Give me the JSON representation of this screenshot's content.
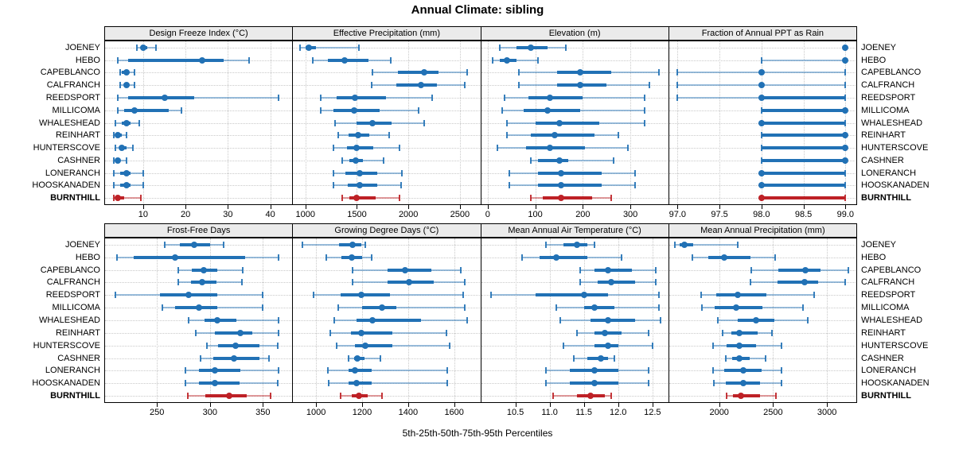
{
  "chart_data": {
    "type": "dotplot-percentile-lattice",
    "title": "Annual Climate: sibling",
    "caption": "5th-25th-50th-75th-95th Percentiles",
    "percentiles": [
      5,
      25,
      50,
      75,
      95
    ],
    "categories": [
      "JOENEY",
      "HEBO",
      "CAPEBLANCO",
      "CALFRANCH",
      "REEDSPORT",
      "MILLICOMA",
      "WHALESHEAD",
      "REINHART",
      "HUNTERSCOVE",
      "CASHNER",
      "LONERANCH",
      "HOOSKANADEN",
      "BURNTHILL"
    ],
    "highlight_category": "BURNTHILL",
    "colors": {
      "series": "#2171b5",
      "highlight": "#be2126",
      "strip_bg": "#ebebeb",
      "grid": "#c9c9c9",
      "border": "#000000"
    },
    "grid": true,
    "legend": "none",
    "panels": [
      {
        "title": "Design Freeze Index (°C)",
        "row": 0,
        "col": 0,
        "xlim": [
          1,
          45
        ],
        "ticks": [
          10,
          20,
          30,
          40
        ],
        "tick_labels": [
          "10",
          "20",
          "30",
          "40"
        ],
        "values": [
          [
            8.5,
            9.5,
            10,
            11,
            13
          ],
          [
            4,
            6.5,
            24,
            29,
            35
          ],
          [
            4.5,
            5,
            6,
            6.5,
            8
          ],
          [
            4.5,
            5.5,
            6,
            6.5,
            8
          ],
          [
            4,
            6.5,
            15,
            22,
            42
          ],
          [
            4,
            5.5,
            8,
            16,
            19
          ],
          [
            3.5,
            5,
            6,
            7,
            9
          ],
          [
            3,
            3.5,
            4,
            5,
            6
          ],
          [
            3.5,
            4.5,
            5,
            6,
            7.5
          ],
          [
            3,
            3.5,
            4,
            4.5,
            6
          ],
          [
            3,
            4.5,
            6,
            7,
            10
          ],
          [
            3,
            4.5,
            6,
            7,
            10
          ],
          [
            3,
            3.5,
            4,
            5.5,
            9.5
          ]
        ]
      },
      {
        "title": "Effective Precipitation (mm)",
        "row": 0,
        "col": 1,
        "xlim": [
          880,
          2690
        ],
        "ticks": [
          1000,
          1500,
          2000,
          2500
        ],
        "tick_labels": [
          "1000",
          "1500",
          "2000",
          "2500"
        ],
        "values": [
          [
            950,
            1000,
            1030,
            1100,
            1520
          ],
          [
            1070,
            1220,
            1380,
            1610,
            1830
          ],
          [
            1650,
            1900,
            2150,
            2290,
            2570
          ],
          [
            1640,
            1880,
            2120,
            2280,
            2550
          ],
          [
            1150,
            1300,
            1480,
            1780,
            2230
          ],
          [
            1150,
            1270,
            1470,
            1720,
            2100
          ],
          [
            1290,
            1500,
            1650,
            1840,
            2150
          ],
          [
            1320,
            1420,
            1510,
            1620,
            1810
          ],
          [
            1270,
            1400,
            1500,
            1660,
            1910
          ],
          [
            1360,
            1430,
            1490,
            1560,
            1760
          ],
          [
            1270,
            1390,
            1530,
            1700,
            1940
          ],
          [
            1270,
            1410,
            1530,
            1700,
            1930
          ],
          [
            1360,
            1430,
            1500,
            1680,
            1910
          ]
        ]
      },
      {
        "title": "Elevation (m)",
        "row": 0,
        "col": 2,
        "xlim": [
          -14,
          378
        ],
        "ticks": [
          0,
          100,
          200,
          300
        ],
        "tick_labels": [
          "0",
          "100",
          "200",
          "300"
        ],
        "values": [
          [
            25,
            60,
            90,
            125,
            165
          ],
          [
            10,
            25,
            40,
            60,
            105
          ],
          [
            65,
            145,
            195,
            260,
            360
          ],
          [
            65,
            145,
            195,
            250,
            340
          ],
          [
            35,
            85,
            130,
            200,
            330
          ],
          [
            30,
            75,
            125,
            195,
            330
          ],
          [
            40,
            100,
            150,
            235,
            330
          ],
          [
            40,
            90,
            140,
            225,
            275
          ],
          [
            20,
            80,
            130,
            205,
            295
          ],
          [
            90,
            105,
            150,
            170,
            265
          ],
          [
            45,
            105,
            155,
            240,
            310
          ],
          [
            45,
            105,
            155,
            240,
            310
          ],
          [
            90,
            115,
            155,
            220,
            260
          ]
        ]
      },
      {
        "title": "Fraction of Annual PPT as Rain",
        "row": 0,
        "col": 3,
        "xlim": [
          96.9,
          99.12
        ],
        "ticks": [
          97.0,
          97.5,
          98.0,
          98.5,
          99.0
        ],
        "tick_labels": [
          "97.0",
          "97.5",
          "98.0",
          "98.5",
          "99.0"
        ],
        "values": [
          [
            99,
            99,
            99,
            99,
            99
          ],
          [
            98,
            99,
            99,
            99,
            99
          ],
          [
            97,
            98,
            98,
            98,
            99
          ],
          [
            97,
            98,
            98,
            98,
            99
          ],
          [
            97,
            98,
            98,
            99,
            99
          ],
          [
            98,
            98,
            99,
            99,
            99
          ],
          [
            98,
            98,
            98,
            99,
            99
          ],
          [
            98,
            98,
            99,
            99,
            99
          ],
          [
            98,
            98,
            99,
            99,
            99
          ],
          [
            98,
            98,
            99,
            99,
            99
          ],
          [
            98,
            98,
            98,
            99,
            99
          ],
          [
            98,
            98,
            98,
            99,
            99
          ],
          [
            98,
            98,
            98,
            99,
            99
          ]
        ]
      },
      {
        "title": "Frost-Free Days",
        "row": 1,
        "col": 0,
        "xlim": [
          201,
          377
        ],
        "ticks": [
          250,
          300,
          350
        ],
        "tick_labels": [
          "250",
          "300",
          "350"
        ],
        "values": [
          [
            257,
            272,
            285,
            300,
            313
          ],
          [
            212,
            228,
            267,
            333,
            365
          ],
          [
            270,
            283,
            294,
            307,
            331
          ],
          [
            270,
            282,
            293,
            306,
            330
          ],
          [
            211,
            253,
            280,
            307,
            350
          ],
          [
            255,
            267,
            290,
            307,
            350
          ],
          [
            280,
            295,
            307,
            325,
            365
          ],
          [
            287,
            305,
            329,
            340,
            365
          ],
          [
            297,
            308,
            324,
            347,
            364
          ],
          [
            291,
            303,
            323,
            347,
            356
          ],
          [
            277,
            290,
            305,
            329,
            365
          ],
          [
            277,
            290,
            305,
            328,
            364
          ],
          [
            279,
            296,
            318,
            335,
            357
          ]
        ]
      },
      {
        "title": "Growing Degree Days (°C)",
        "row": 1,
        "col": 1,
        "xlim": [
          900,
          1710
        ],
        "ticks": [
          1000,
          1200,
          1400,
          1600
        ],
        "tick_labels": [
          "1000",
          "1200",
          "1400",
          "1600"
        ],
        "values": [
          [
            940,
            1100,
            1160,
            1195,
            1215
          ],
          [
            1045,
            1110,
            1155,
            1200,
            1240
          ],
          [
            1160,
            1310,
            1385,
            1500,
            1630
          ],
          [
            1160,
            1310,
            1405,
            1510,
            1645
          ],
          [
            990,
            1105,
            1195,
            1320,
            1640
          ],
          [
            1095,
            1200,
            1285,
            1350,
            1645
          ],
          [
            1080,
            1175,
            1245,
            1455,
            1655
          ],
          [
            1060,
            1150,
            1195,
            1330,
            1565
          ],
          [
            1090,
            1170,
            1215,
            1330,
            1580
          ],
          [
            1140,
            1165,
            1180,
            1210,
            1280
          ],
          [
            1050,
            1140,
            1170,
            1240,
            1570
          ],
          [
            1055,
            1140,
            1175,
            1240,
            1570
          ],
          [
            1105,
            1155,
            1185,
            1225,
            1285
          ]
        ]
      },
      {
        "title": "Mean Annual Air Temperature (°C)",
        "row": 1,
        "col": 2,
        "xlim": [
          10.0,
          12.72
        ],
        "ticks": [
          10.5,
          11.0,
          11.5,
          12.0,
          12.5
        ],
        "tick_labels": [
          "10.5",
          "11.0",
          "11.5",
          "12.0",
          "12.5"
        ],
        "values": [
          [
            10.95,
            11.2,
            11.4,
            11.55,
            11.65
          ],
          [
            10.6,
            10.85,
            11.1,
            11.55,
            12.05
          ],
          [
            11.45,
            11.65,
            11.85,
            12.2,
            12.55
          ],
          [
            11.45,
            11.7,
            11.9,
            12.25,
            12.55
          ],
          [
            10.15,
            10.8,
            11.5,
            11.85,
            12.6
          ],
          [
            11.1,
            11.5,
            11.65,
            11.95,
            12.6
          ],
          [
            11.15,
            11.6,
            11.85,
            12.25,
            12.62
          ],
          [
            11.4,
            11.65,
            11.8,
            12.05,
            12.45
          ],
          [
            11.2,
            11.65,
            11.85,
            12.0,
            12.5
          ],
          [
            11.35,
            11.55,
            11.75,
            11.85,
            11.95
          ],
          [
            10.95,
            11.3,
            11.65,
            12.0,
            12.45
          ],
          [
            10.95,
            11.3,
            11.65,
            12.0,
            12.45
          ],
          [
            11.05,
            11.4,
            11.6,
            11.8,
            11.9
          ]
        ]
      },
      {
        "title": "Mean Annual Precipitation (mm)",
        "row": 1,
        "col": 3,
        "xlim": [
          1535,
          3265
        ],
        "ticks": [
          2000,
          2500,
          3000
        ],
        "tick_labels": [
          "2000",
          "2500",
          "3000"
        ],
        "values": [
          [
            1590,
            1630,
            1680,
            1760,
            2170
          ],
          [
            1750,
            1900,
            2050,
            2290,
            2520
          ],
          [
            2300,
            2550,
            2800,
            2940,
            3200
          ],
          [
            2290,
            2540,
            2790,
            2920,
            3170
          ],
          [
            1830,
            1970,
            2170,
            2440,
            2880
          ],
          [
            1840,
            1960,
            2160,
            2400,
            2780
          ],
          [
            1990,
            2170,
            2340,
            2510,
            2820
          ],
          [
            2030,
            2110,
            2190,
            2360,
            2490
          ],
          [
            1940,
            2070,
            2190,
            2340,
            2580
          ],
          [
            2060,
            2120,
            2190,
            2280,
            2430
          ],
          [
            1940,
            2050,
            2220,
            2390,
            2580
          ],
          [
            1950,
            2060,
            2220,
            2380,
            2580
          ],
          [
            2070,
            2130,
            2200,
            2380,
            2530
          ]
        ]
      }
    ]
  }
}
